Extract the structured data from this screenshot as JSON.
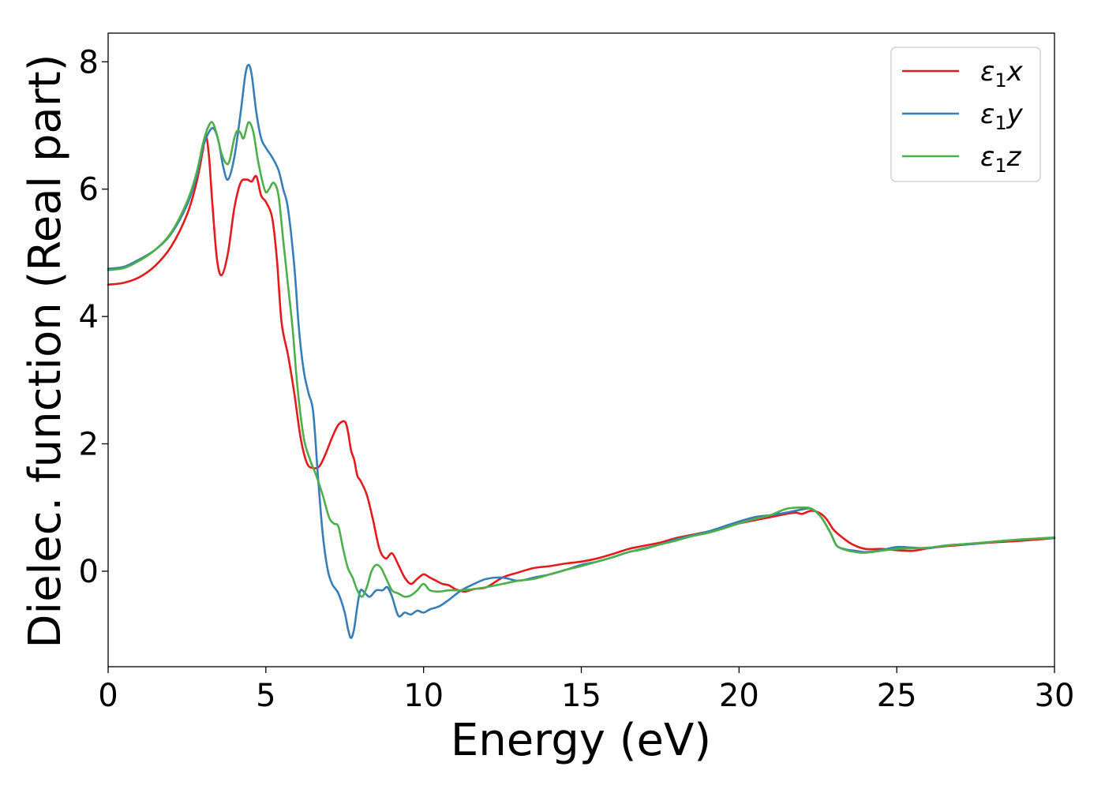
{
  "chart_data": {
    "type": "line",
    "title": "",
    "xlabel": "Energy (eV)",
    "ylabel": "Dielec. function (Real part)",
    "xlim": [
      0,
      30
    ],
    "ylim": [
      -1.5,
      8.45
    ],
    "xticks": [
      0,
      5,
      10,
      15,
      20,
      25,
      30
    ],
    "yticks": [
      0,
      2,
      4,
      6,
      8
    ],
    "grid": false,
    "legend": {
      "position": "top-right"
    },
    "series": [
      {
        "name": "ε1x",
        "label_base": "ε",
        "label_sub": "1",
        "label_tail": "x",
        "color": "#e41a1c",
        "x": [
          0,
          0.5,
          1,
          1.5,
          2,
          2.5,
          2.8,
          3.0,
          3.1,
          3.2,
          3.3,
          3.45,
          3.6,
          3.8,
          4.0,
          4.2,
          4.4,
          4.55,
          4.7,
          4.85,
          5.0,
          5.2,
          5.35,
          5.5,
          5.7,
          5.9,
          6.1,
          6.3,
          6.5,
          6.7,
          6.9,
          7.1,
          7.3,
          7.5,
          7.6,
          7.7,
          7.8,
          7.9,
          8.0,
          8.2,
          8.4,
          8.6,
          8.8,
          9.0,
          9.2,
          9.4,
          9.6,
          9.8,
          10.0,
          10.2,
          10.4,
          10.6,
          10.8,
          11.0,
          11.3,
          11.6,
          12.0,
          12.5,
          13.0,
          13.5,
          14.0,
          14.5,
          15.0,
          15.5,
          16.0,
          16.5,
          17.0,
          17.5,
          18.0,
          18.5,
          19.0,
          19.5,
          20.0,
          20.5,
          21.0,
          21.5,
          21.8,
          22.0,
          22.3,
          22.6,
          22.8,
          23.0,
          23.3,
          23.6,
          24.0,
          24.5,
          25.0,
          25.5,
          26.0,
          26.5,
          27.0,
          27.5,
          28.0,
          29.0,
          30.0
        ],
        "y": [
          4.5,
          4.53,
          4.62,
          4.8,
          5.1,
          5.6,
          6.1,
          6.6,
          6.85,
          6.5,
          5.8,
          4.9,
          4.65,
          5.0,
          5.7,
          6.1,
          6.15,
          6.12,
          6.2,
          5.9,
          5.8,
          5.55,
          4.9,
          3.9,
          3.4,
          2.8,
          2.1,
          1.7,
          1.62,
          1.65,
          1.85,
          2.1,
          2.3,
          2.35,
          2.2,
          1.9,
          1.75,
          1.5,
          1.42,
          1.2,
          0.8,
          0.35,
          0.2,
          0.28,
          0.1,
          -0.1,
          -0.2,
          -0.12,
          -0.05,
          -0.1,
          -0.15,
          -0.2,
          -0.22,
          -0.28,
          -0.32,
          -0.28,
          -0.25,
          -0.1,
          -0.02,
          0.05,
          0.08,
          0.12,
          0.15,
          0.2,
          0.27,
          0.35,
          0.4,
          0.45,
          0.52,
          0.57,
          0.62,
          0.68,
          0.75,
          0.8,
          0.85,
          0.9,
          0.92,
          0.9,
          0.95,
          0.9,
          0.8,
          0.65,
          0.52,
          0.42,
          0.35,
          0.35,
          0.33,
          0.32,
          0.36,
          0.39,
          0.41,
          0.43,
          0.45,
          0.48,
          0.52
        ]
      },
      {
        "name": "ε1y",
        "label_base": "ε",
        "label_sub": "1",
        "label_tail": "y",
        "color": "#377eb8",
        "x": [
          0,
          0.5,
          1,
          1.5,
          2,
          2.5,
          2.8,
          3.0,
          3.2,
          3.35,
          3.5,
          3.65,
          3.8,
          4.0,
          4.2,
          4.35,
          4.45,
          4.55,
          4.7,
          4.85,
          5.0,
          5.2,
          5.4,
          5.55,
          5.7,
          5.9,
          6.05,
          6.2,
          6.35,
          6.5,
          6.65,
          6.8,
          6.95,
          7.1,
          7.3,
          7.5,
          7.6,
          7.7,
          7.8,
          7.9,
          8.0,
          8.15,
          8.3,
          8.5,
          8.7,
          8.85,
          9.0,
          9.2,
          9.4,
          9.6,
          9.8,
          10.0,
          10.2,
          10.5,
          10.8,
          11.2,
          11.6,
          12.0,
          12.5,
          13.0,
          13.5,
          14.0,
          14.5,
          15.0,
          15.5,
          16.0,
          16.5,
          17.0,
          17.5,
          18.0,
          18.5,
          19.0,
          19.5,
          20.0,
          20.5,
          21.0,
          21.5,
          22.0,
          22.3,
          22.6,
          22.9,
          23.1,
          23.4,
          23.7,
          24.0,
          24.5,
          25.0,
          25.5,
          26.0,
          26.5,
          27.0,
          27.5,
          28.0,
          29.0,
          30.0
        ],
        "y": [
          4.75,
          4.78,
          4.9,
          5.05,
          5.3,
          5.75,
          6.2,
          6.65,
          6.9,
          6.95,
          6.75,
          6.35,
          6.15,
          6.5,
          7.2,
          7.8,
          7.95,
          7.8,
          7.2,
          6.8,
          6.65,
          6.5,
          6.3,
          6.0,
          5.7,
          4.8,
          3.8,
          3.15,
          2.8,
          2.5,
          1.5,
          0.6,
          0.05,
          -0.2,
          -0.35,
          -0.65,
          -0.9,
          -1.05,
          -0.9,
          -0.55,
          -0.3,
          -0.35,
          -0.4,
          -0.3,
          -0.3,
          -0.25,
          -0.4,
          -0.7,
          -0.65,
          -0.68,
          -0.62,
          -0.65,
          -0.6,
          -0.55,
          -0.45,
          -0.3,
          -0.2,
          -0.12,
          -0.1,
          -0.15,
          -0.1,
          -0.05,
          0.02,
          0.1,
          0.15,
          0.22,
          0.3,
          0.36,
          0.42,
          0.5,
          0.56,
          0.62,
          0.7,
          0.78,
          0.85,
          0.88,
          0.92,
          0.97,
          0.98,
          0.85,
          0.6,
          0.4,
          0.34,
          0.32,
          0.3,
          0.33,
          0.38,
          0.37,
          0.36,
          0.4,
          0.42,
          0.43,
          0.46,
          0.5,
          0.52
        ]
      },
      {
        "name": "ε1z",
        "label_base": "ε",
        "label_sub": "1",
        "label_tail": "z",
        "color": "#4daf4a",
        "x": [
          0,
          0.5,
          1,
          1.5,
          2,
          2.5,
          2.8,
          3.0,
          3.15,
          3.3,
          3.45,
          3.6,
          3.75,
          3.85,
          4.0,
          4.1,
          4.2,
          4.3,
          4.45,
          4.6,
          4.75,
          4.9,
          5.0,
          5.1,
          5.25,
          5.4,
          5.55,
          5.7,
          5.85,
          6.0,
          6.2,
          6.4,
          6.6,
          6.8,
          7.0,
          7.15,
          7.3,
          7.45,
          7.6,
          7.75,
          7.9,
          8.05,
          8.2,
          8.35,
          8.5,
          8.65,
          8.8,
          9.0,
          9.2,
          9.4,
          9.6,
          9.8,
          10.0,
          10.2,
          10.5,
          10.8,
          11.2,
          11.6,
          12.0,
          12.5,
          13.0,
          13.5,
          14.0,
          14.5,
          15.0,
          15.5,
          16.0,
          16.5,
          17.0,
          17.5,
          18.0,
          18.5,
          19.0,
          19.5,
          20.0,
          20.5,
          21.0,
          21.5,
          22.0,
          22.3,
          22.6,
          22.9,
          23.1,
          23.4,
          23.7,
          24.0,
          24.5,
          25.0,
          25.5,
          26.0,
          26.5,
          27.0,
          27.5,
          28.0,
          29.0,
          30.0
        ],
        "y": [
          4.73,
          4.76,
          4.88,
          5.05,
          5.32,
          5.8,
          6.25,
          6.7,
          6.95,
          7.05,
          6.85,
          6.55,
          6.4,
          6.45,
          6.8,
          6.92,
          6.88,
          6.8,
          7.05,
          6.9,
          6.45,
          6.1,
          5.95,
          6.0,
          6.1,
          5.9,
          5.2,
          4.5,
          3.8,
          2.9,
          2.1,
          1.75,
          1.5,
          1.2,
          0.85,
          0.75,
          0.7,
          0.35,
          0.05,
          -0.1,
          -0.3,
          -0.4,
          -0.25,
          0.0,
          0.1,
          0.05,
          -0.1,
          -0.3,
          -0.35,
          -0.4,
          -0.38,
          -0.3,
          -0.2,
          -0.3,
          -0.32,
          -0.3,
          -0.3,
          -0.28,
          -0.25,
          -0.2,
          -0.15,
          -0.12,
          -0.05,
          0.02,
          0.08,
          0.15,
          0.22,
          0.3,
          0.35,
          0.42,
          0.48,
          0.55,
          0.6,
          0.67,
          0.75,
          0.82,
          0.88,
          0.98,
          1.0,
          0.98,
          0.85,
          0.6,
          0.4,
          0.33,
          0.3,
          0.29,
          0.32,
          0.35,
          0.36,
          0.37,
          0.4,
          0.42,
          0.44,
          0.46,
          0.5,
          0.53
        ]
      }
    ]
  }
}
